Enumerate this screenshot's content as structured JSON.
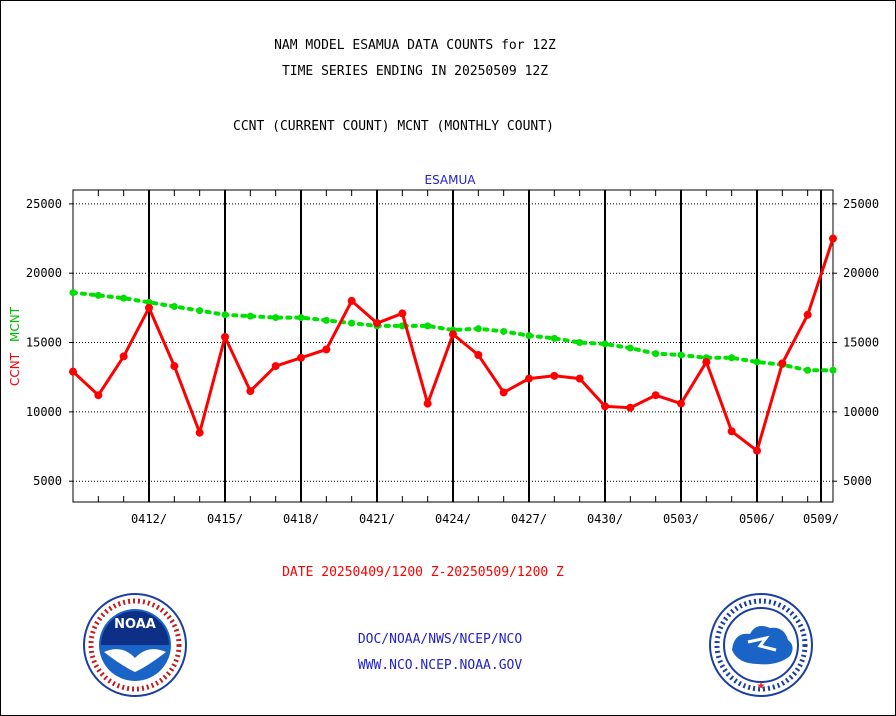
{
  "header": {
    "title_line1": "NAM MODEL ESAMUA DATA COUNTS for 12Z",
    "title_line2": "TIME SERIES ENDING IN 20250509 12Z",
    "title_line3": "CCNT (CURRENT COUNT) MCNT (MONTHLY COUNT)"
  },
  "footer": {
    "date_range": "DATE 20250409/1200 Z-20250509/1200 Z",
    "credit_line1": "DOC/NOAA/NWS/NCEP/NCO",
    "credit_line2": "WWW.NCO.NCEP.NOAA.GOV"
  },
  "logos": {
    "left": {
      "icon": "noaa-logo-icon",
      "text": "NOAA",
      "ring_text": "NATIONAL OCEANIC AND ATMOSPHERIC ADMINISTRATION U.S. DEPARTMENT OF COMMERCE"
    },
    "right": {
      "icon": "nws-logo-icon",
      "ring_text": "NATIONAL WEATHER SERVICE"
    }
  },
  "chart_data": {
    "type": "line",
    "title": "ESAMUA",
    "ylabel_parts": [
      "CCNT",
      "MCNT"
    ],
    "ylim": [
      3500,
      26000
    ],
    "yticks": [
      5000,
      10000,
      15000,
      20000,
      25000
    ],
    "ytick_labels": [
      "5000",
      "10000",
      "15000",
      "20000",
      "25000"
    ],
    "x_start_day": 0,
    "x_end_day": 30,
    "x_ticks": [
      {
        "day": 3,
        "label": "0412/"
      },
      {
        "day": 6,
        "label": "0415/"
      },
      {
        "day": 9,
        "label": "0418/"
      },
      {
        "day": 12,
        "label": "0421/"
      },
      {
        "day": 15,
        "label": "0424/"
      },
      {
        "day": 18,
        "label": "0427/"
      },
      {
        "day": 21,
        "label": "0430/"
      },
      {
        "day": 24,
        "label": "0503/"
      },
      {
        "day": 27,
        "label": "0506/"
      },
      {
        "day": 30,
        "label": "0509/"
      }
    ],
    "grid": true,
    "colors": {
      "ccnt": "#ff0000",
      "mcnt": "#00e000",
      "title": "#2222cc"
    },
    "series": [
      {
        "name": "CCNT",
        "color": "#ff0000",
        "x": [
          0,
          1,
          2,
          3,
          4,
          5,
          6,
          7,
          8,
          9,
          10,
          11,
          12,
          13,
          14,
          15,
          16,
          17,
          18,
          19,
          20,
          21,
          22,
          23,
          24,
          25,
          26,
          27,
          28,
          29,
          30
        ],
        "values": [
          12900,
          11200,
          14000,
          17500,
          13300,
          8500,
          15400,
          11500,
          13300,
          13900,
          14500,
          18000,
          16400,
          17100,
          10600,
          15600,
          14100,
          11400,
          12400,
          12600,
          12400,
          10400,
          10300,
          11200,
          10600,
          13600,
          8600,
          7200,
          13500,
          17000,
          22500
        ]
      },
      {
        "name": "MCNT",
        "color": "#00e000",
        "x": [
          0,
          1,
          2,
          3,
          4,
          5,
          6,
          7,
          8,
          9,
          10,
          11,
          12,
          13,
          14,
          15,
          16,
          17,
          18,
          19,
          20,
          21,
          22,
          23,
          24,
          25,
          26,
          27,
          28,
          29,
          30
        ],
        "values": [
          18600,
          18400,
          18200,
          17900,
          17600,
          17300,
          17000,
          16900,
          16800,
          16800,
          16600,
          16400,
          16200,
          16200,
          16200,
          15900,
          16000,
          15800,
          15500,
          15300,
          15000,
          14900,
          14600,
          14200,
          14100,
          13900,
          13900,
          13600,
          13400,
          13000,
          13000
        ]
      }
    ]
  }
}
